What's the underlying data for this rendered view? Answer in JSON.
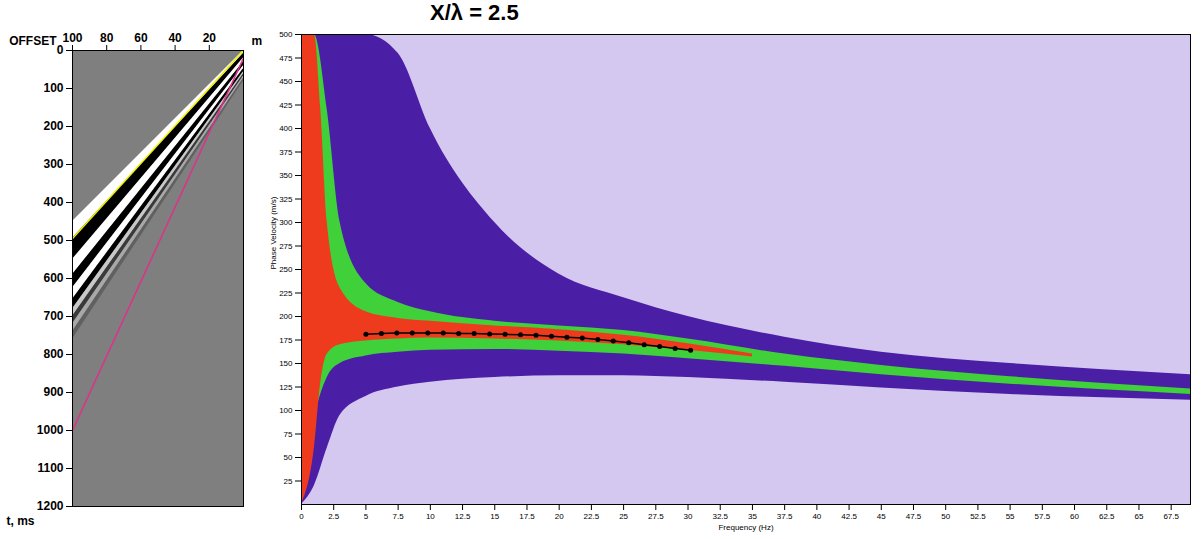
{
  "chart_data": [
    {
      "type": "seismogram",
      "x_label": "OFFSET",
      "x_unit": "m",
      "y_label": "t, ms",
      "xlim": [
        100,
        0
      ],
      "xticks": [
        100,
        80,
        60,
        40,
        20
      ],
      "ylim": [
        1200,
        0
      ],
      "yticks": [
        0,
        100,
        200,
        300,
        400,
        500,
        600,
        700,
        800,
        900,
        1000,
        1100,
        1200
      ],
      "bands": [
        {
          "color": "#ffffff",
          "x": [
            0,
            100
          ],
          "lower": [
            0,
            450
          ],
          "upper": [
            8,
            495
          ]
        },
        {
          "color": "#000000",
          "x": [
            0,
            100
          ],
          "lower": [
            8,
            495
          ],
          "upper": [
            20,
            550
          ]
        },
        {
          "color": "#ffffff",
          "x": [
            0,
            100
          ],
          "lower": [
            20,
            550
          ],
          "upper": [
            30,
            590
          ]
        },
        {
          "color": "#000000",
          "x": [
            0,
            100
          ],
          "lower": [
            30,
            590
          ],
          "upper": [
            40,
            625
          ]
        },
        {
          "color": "#ffffff",
          "x": [
            0,
            100
          ],
          "lower": [
            40,
            625
          ],
          "upper": [
            48,
            655
          ]
        },
        {
          "color": "#000000",
          "x": [
            0,
            100
          ],
          "lower": [
            48,
            655
          ],
          "upper": [
            56,
            680
          ]
        },
        {
          "color": "#c8c8c8",
          "x": [
            0,
            100
          ],
          "lower": [
            56,
            680
          ],
          "upper": [
            62,
            700
          ]
        },
        {
          "color": "#3a3a3a",
          "x": [
            0,
            100
          ],
          "lower": [
            62,
            700
          ],
          "upper": [
            68,
            720
          ]
        },
        {
          "color": "#a8a8a8",
          "x": [
            0,
            100
          ],
          "lower": [
            68,
            720
          ],
          "upper": [
            74,
            740
          ]
        },
        {
          "color": "#606060",
          "x": [
            0,
            100
          ],
          "lower": [
            74,
            740
          ],
          "upper": [
            80,
            760
          ]
        }
      ],
      "lines": [
        {
          "color": "#f0f000",
          "x": [
            0,
            100
          ],
          "values": [
            0,
            495
          ]
        },
        {
          "color": "#e0308a",
          "x": [
            0,
            100
          ],
          "values": [
            20,
            1000
          ]
        }
      ]
    },
    {
      "type": "dispersion",
      "title": "X/λ = 2.5",
      "x_label": "Frequency (Hz)",
      "y_label": "Phase Velocity (m/s)",
      "xlim": [
        0,
        69
      ],
      "xticks": [
        0,
        2.5,
        5,
        7.5,
        10,
        12.5,
        15,
        17.5,
        20,
        22.5,
        25,
        27.5,
        30,
        32.5,
        35,
        37.5,
        40,
        42.5,
        45,
        47.5,
        50,
        52.5,
        55,
        57.5,
        60,
        62.5,
        65,
        67.5
      ],
      "ylim": [
        0,
        500
      ],
      "yticks": [
        25,
        50,
        75,
        100,
        125,
        150,
        175,
        200,
        225,
        250,
        275,
        300,
        325,
        350,
        375,
        400,
        425,
        450,
        475,
        500
      ],
      "bands": [
        {
          "color": "#4b1ea6",
          "x": [
            0,
            1,
            2,
            3,
            5,
            7.5,
            10,
            15,
            20,
            25,
            30,
            37.5,
            45,
            55,
            69
          ],
          "lower": [
            0,
            20,
            60,
            95,
            115,
            125,
            130,
            135,
            137,
            137,
            135,
            130,
            124,
            117,
            111
          ],
          "upper": [
            500,
            500,
            500,
            500,
            500,
            480,
            400,
            300,
            245,
            220,
            200,
            178,
            162,
            150,
            138
          ]
        },
        {
          "color": "#3fd03a",
          "x": [
            0,
            1,
            2,
            3,
            5,
            7.5,
            10,
            15,
            20,
            25,
            30,
            37.5,
            45,
            55,
            69
          ],
          "lower": [
            0,
            90,
            135,
            150,
            158,
            162,
            164,
            165,
            163,
            160,
            155,
            147,
            138,
            128,
            117
          ],
          "upper": [
            500,
            500,
            420,
            300,
            235,
            215,
            205,
            195,
            190,
            185,
            176,
            160,
            148,
            136,
            123
          ]
        },
        {
          "color": "#ef3b1d",
          "x": [
            0,
            1,
            1.5,
            2,
            3,
            5,
            7.5,
            10,
            15,
            20,
            25,
            30,
            35
          ],
          "lower": [
            0,
            60,
            130,
            160,
            170,
            174,
            176,
            177,
            176,
            174,
            170,
            164,
            157
          ],
          "upper": [
            500,
            500,
            420,
            300,
            230,
            205,
            198,
            195,
            190,
            186,
            180,
            171,
            160
          ]
        }
      ],
      "picks": {
        "color": "#000000",
        "marker": "circle",
        "x": [
          5,
          6.2,
          7.4,
          8.6,
          9.8,
          11,
          12.2,
          13.4,
          14.6,
          15.8,
          17,
          18.2,
          19.4,
          20.6,
          21.8,
          23,
          24.2,
          25.4,
          26.6,
          27.8,
          29,
          30.2
        ],
        "values": [
          181,
          182,
          182.5,
          182.5,
          182.5,
          182.5,
          182,
          182,
          181.5,
          181,
          180.5,
          180,
          179,
          178,
          177,
          175.5,
          174,
          172,
          170,
          168,
          166,
          164
        ]
      }
    }
  ]
}
